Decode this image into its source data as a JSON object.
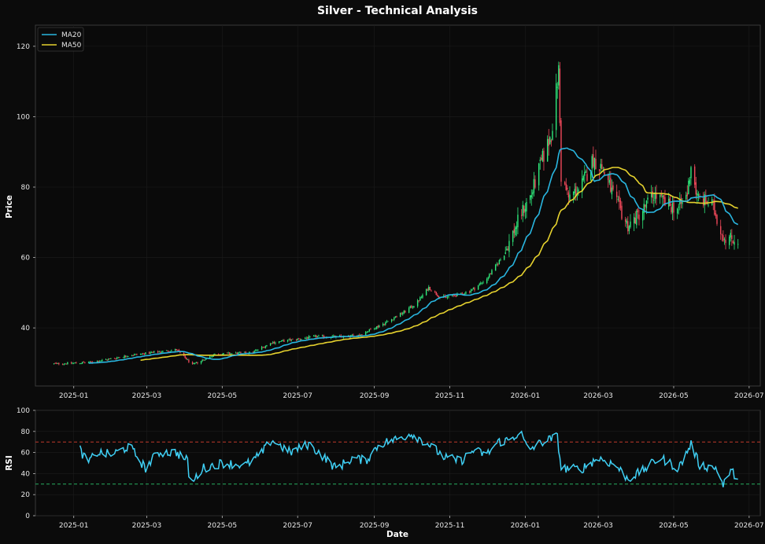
{
  "title": "Silver - Technical Analysis",
  "colors": {
    "background": "#0b0b0b",
    "axes_bg": "#0a0a0a",
    "spine": "#3a3a3a",
    "grid": "#1c1c1c",
    "up": "#2ee87a",
    "down": "#f0485a",
    "ma20": "#29b6e0",
    "ma50": "#e6d22e",
    "rsi": "#3fd0f5",
    "overbought": "#c0392b",
    "oversold": "#27ae60"
  },
  "chart_data": [
    {
      "type": "candlestick",
      "ylabel": "Price",
      "xlim": [
        "2024-12-01",
        "2026-07-10"
      ],
      "ylim": [
        23.5,
        126
      ],
      "grid": true,
      "legend": "top-left",
      "x_ticks": [
        "2025-01",
        "2025-03",
        "2025-05",
        "2025-07",
        "2025-09",
        "2025-11",
        "2026-01",
        "2026-03",
        "2026-05",
        "2026-07"
      ],
      "y_ticks": [
        40,
        60,
        80,
        100,
        120
      ],
      "date_range": [
        "2024-12-16",
        "2026-06-22"
      ],
      "series": [
        {
          "name": "MA20",
          "color": "#29b6e0",
          "start": "2025-01-13"
        },
        {
          "name": "MA50",
          "color": "#e6d22e",
          "start": "2025-02-24"
        }
      ],
      "price_anchors": [
        [
          "2024-12-16",
          29.8
        ],
        [
          "2025-01-15",
          30.2
        ],
        [
          "2025-02-15",
          32.2
        ],
        [
          "2025-03-25",
          33.8
        ],
        [
          "2025-04-07",
          29.5
        ],
        [
          "2025-04-25",
          32.5
        ],
        [
          "2025-05-25",
          33.0
        ],
        [
          "2025-06-10",
          35.8
        ],
        [
          "2025-07-15",
          37.5
        ],
        [
          "2025-08-10",
          37.5
        ],
        [
          "2025-08-20",
          38.0
        ],
        [
          "2025-09-10",
          41.5
        ],
        [
          "2025-09-25",
          44.5
        ],
        [
          "2025-10-05",
          47.0
        ],
        [
          "2025-10-15",
          51.5
        ],
        [
          "2025-10-25",
          48.5
        ],
        [
          "2025-11-10",
          49.5
        ],
        [
          "2025-11-20",
          51.0
        ],
        [
          "2025-12-01",
          54.0
        ],
        [
          "2025-12-15",
          61.0
        ],
        [
          "2025-12-28",
          72.0
        ],
        [
          "2026-01-06",
          78.0
        ],
        [
          "2026-01-15",
          88.0
        ],
        [
          "2026-01-22",
          95.0
        ],
        [
          "2026-01-28",
          113.0
        ],
        [
          "2026-01-30",
          83.0
        ],
        [
          "2026-02-05",
          77.0
        ],
        [
          "2026-02-15",
          80.0
        ],
        [
          "2026-02-25",
          88.0
        ],
        [
          "2026-03-05",
          85.0
        ],
        [
          "2026-03-15",
          76.0
        ],
        [
          "2026-03-25",
          69.0
        ],
        [
          "2026-04-05",
          73.0
        ],
        [
          "2026-04-15",
          78.0
        ],
        [
          "2026-04-25",
          75.0
        ],
        [
          "2026-05-05",
          74.0
        ],
        [
          "2026-05-12",
          78.0
        ],
        [
          "2026-05-15",
          86.5
        ],
        [
          "2026-05-20",
          77.0
        ],
        [
          "2026-06-01",
          75.0
        ],
        [
          "2026-06-10",
          66.0
        ],
        [
          "2026-06-22",
          65.0
        ]
      ]
    },
    {
      "type": "line",
      "ylabel": "RSI",
      "xlabel": "Date",
      "xlim": [
        "2024-12-01",
        "2026-07-10"
      ],
      "ylim": [
        0,
        100
      ],
      "y_ticks": [
        0,
        20,
        40,
        60,
        80,
        100
      ],
      "x_ticks": [
        "2025-01",
        "2025-03",
        "2025-05",
        "2025-07",
        "2025-09",
        "2025-11",
        "2026-01",
        "2026-03",
        "2026-05",
        "2026-07"
      ],
      "overbought": 70,
      "oversold": 30,
      "start": "2025-01-06",
      "end": "2026-06-22",
      "rsi_anchors": [
        [
          "2025-01-06",
          63
        ],
        [
          "2025-01-12",
          50
        ],
        [
          "2025-01-20",
          60
        ],
        [
          "2025-02-01",
          58
        ],
        [
          "2025-02-15",
          66
        ],
        [
          "2025-02-28",
          45
        ],
        [
          "2025-03-10",
          60
        ],
        [
          "2025-03-25",
          60
        ],
        [
          "2025-04-03",
          52
        ],
        [
          "2025-04-05",
          28
        ],
        [
          "2025-04-15",
          45
        ],
        [
          "2025-05-01",
          50
        ],
        [
          "2025-05-20",
          48
        ],
        [
          "2025-06-01",
          58
        ],
        [
          "2025-06-10",
          72
        ],
        [
          "2025-06-25",
          60
        ],
        [
          "2025-07-10",
          68
        ],
        [
          "2025-07-20",
          58
        ],
        [
          "2025-08-01",
          45
        ],
        [
          "2025-08-15",
          55
        ],
        [
          "2025-08-25",
          52
        ],
        [
          "2025-09-05",
          68
        ],
        [
          "2025-09-20",
          73
        ],
        [
          "2025-10-01",
          78
        ],
        [
          "2025-10-15",
          68
        ],
        [
          "2025-10-28",
          55
        ],
        [
          "2025-11-10",
          52
        ],
        [
          "2025-11-20",
          62
        ],
        [
          "2025-12-01",
          58
        ],
        [
          "2025-12-10",
          70
        ],
        [
          "2025-12-20",
          72
        ],
        [
          "2025-12-28",
          80
        ],
        [
          "2026-01-03",
          62
        ],
        [
          "2026-01-15",
          70
        ],
        [
          "2026-01-27",
          75
        ],
        [
          "2026-01-30",
          45
        ],
        [
          "2026-02-15",
          44
        ],
        [
          "2026-03-01",
          55
        ],
        [
          "2026-03-15",
          48
        ],
        [
          "2026-03-25",
          35
        ],
        [
          "2026-04-05",
          42
        ],
        [
          "2026-04-20",
          55
        ],
        [
          "2026-05-05",
          45
        ],
        [
          "2026-05-15",
          68
        ],
        [
          "2026-05-22",
          48
        ],
        [
          "2026-06-05",
          45
        ],
        [
          "2026-06-10",
          28
        ],
        [
          "2026-06-15",
          42
        ],
        [
          "2026-06-22",
          38
        ]
      ]
    }
  ]
}
